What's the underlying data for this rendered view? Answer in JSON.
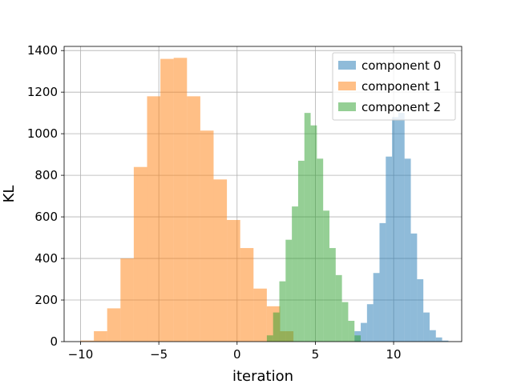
{
  "chart_data": {
    "type": "histogram",
    "title": "",
    "xlabel": "iteration",
    "ylabel": "KL",
    "xlim": [
      -11.05,
      14.35
    ],
    "ylim": [
      0,
      1420
    ],
    "xticks": [
      -10,
      -5,
      0,
      5,
      10
    ],
    "xtick_labels": [
      "−10",
      "−5",
      "0",
      "5",
      "10"
    ],
    "yticks": [
      0,
      200,
      400,
      600,
      800,
      1000,
      1200,
      1400
    ],
    "ytick_labels": [
      "0",
      "200",
      "400",
      "600",
      "800",
      "1000",
      "1200",
      "1400"
    ],
    "grid": true,
    "legend_position": "upper right",
    "series": [
      {
        "name": "component 0",
        "color": "#1f77b4",
        "alpha": 0.5,
        "bin_edges": [
          7.5,
          7.9,
          8.3,
          8.7,
          9.1,
          9.5,
          9.9,
          10.3,
          10.7,
          11.1,
          11.5,
          11.9,
          12.3,
          12.7,
          13.1,
          13.5
        ],
        "counts": [
          50,
          90,
          180,
          330,
          570,
          890,
          1080,
          1100,
          880,
          520,
          300,
          140,
          55,
          20,
          5
        ]
      },
      {
        "name": "component 1",
        "color": "#ff7f0e",
        "alpha": 0.5,
        "bin_edges": [
          -10.0,
          -9.15,
          -8.3,
          -7.45,
          -6.6,
          -5.75,
          -4.9,
          -4.05,
          -3.2,
          -2.35,
          -1.5,
          -0.65,
          0.2,
          1.05,
          1.9,
          2.75,
          3.6
        ],
        "counts": [
          5,
          50,
          160,
          400,
          840,
          1180,
          1360,
          1365,
          1180,
          1015,
          780,
          585,
          450,
          255,
          170,
          50
        ]
      },
      {
        "name": "component 2",
        "color": "#2ca02c",
        "alpha": 0.5,
        "bin_edges": [
          1.9,
          2.3,
          2.7,
          3.1,
          3.5,
          3.9,
          4.3,
          4.7,
          5.1,
          5.5,
          5.9,
          6.3,
          6.7,
          7.1,
          7.5,
          7.9
        ],
        "counts": [
          30,
          140,
          290,
          490,
          650,
          870,
          1100,
          1040,
          880,
          630,
          450,
          320,
          190,
          100,
          30
        ]
      }
    ]
  }
}
